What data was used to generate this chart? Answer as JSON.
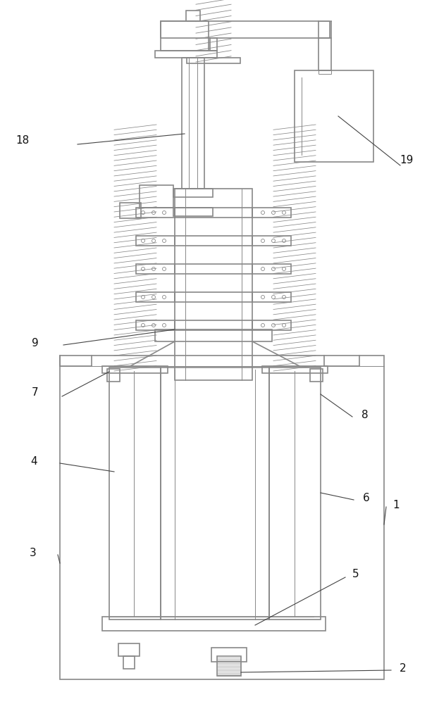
{
  "bg_color": "#ffffff",
  "lc": "#888888",
  "lw": 1.2,
  "tlw": 0.7,
  "fs": 11,
  "figsize": [
    6.23,
    10.0
  ],
  "dpi": 100
}
